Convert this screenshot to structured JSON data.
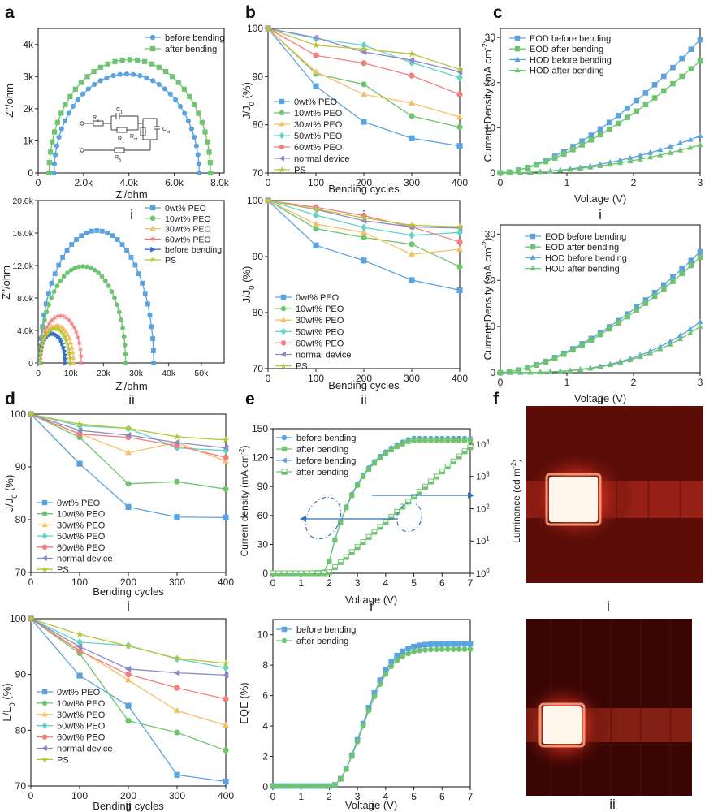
{
  "figure": {
    "panel_letters": [
      "a",
      "b",
      "c",
      "d",
      "e",
      "f"
    ],
    "sub_labels": {
      "i": "i",
      "ii": "ii"
    }
  },
  "chart_data": [
    {
      "id": "a-i",
      "type": "scatter",
      "title": "",
      "xlabel": "Z'/ohm",
      "ylabel": "Z''/ohm",
      "xlim": [
        0,
        8200
      ],
      "ylim": [
        0,
        4500
      ],
      "xticks": [
        0,
        2000,
        4000,
        6000,
        8000
      ],
      "xticklabels": [
        "0",
        "2.0k",
        "4.0k",
        "6.0k",
        "8.0k"
      ],
      "yticks": [
        0,
        1000,
        2000,
        3000,
        4000
      ],
      "yticklabels": [
        "0",
        "1k",
        "2k",
        "3k",
        "4k"
      ],
      "legend": "top-right",
      "inset": {
        "labels": [
          "R2",
          "C1",
          "R1",
          "Rct",
          "Cct",
          "R3"
        ]
      },
      "series": [
        {
          "name": "before bending",
          "color": "#5ba3e0",
          "marker": "circle",
          "semicircle": {
            "x0": 700,
            "x1": 7100,
            "ypeak": 3080
          }
        },
        {
          "name": "after bending",
          "color": "#6fc46f",
          "marker": "square",
          "semicircle": {
            "x0": 480,
            "x1": 7600,
            "ypeak": 3530
          }
        }
      ]
    },
    {
      "id": "a-ii",
      "type": "scatter",
      "title": "",
      "xlabel": "Z'/ohm",
      "ylabel": "Z''/ohm",
      "xlim": [
        0,
        57000
      ],
      "ylim": [
        0,
        20000
      ],
      "xticks": [
        0,
        10000,
        20000,
        30000,
        40000,
        50000
      ],
      "xticklabels": [
        "0",
        "10k",
        "20k",
        "30k",
        "40k",
        "50k"
      ],
      "yticks": [
        0,
        4000,
        8000,
        12000,
        16000,
        20000
      ],
      "yticklabels": [
        "0",
        "4.0k",
        "8.0k",
        "12.0k",
        "16.0k",
        "20.0k"
      ],
      "legend": "top-right",
      "series": [
        {
          "name": "0wt% PEO",
          "color": "#5ba3e0",
          "marker": "square",
          "semicircle": {
            "x0": 600,
            "x1": 35400,
            "ypeak": 16300
          }
        },
        {
          "name": "10wt% PEO",
          "color": "#6fc46f",
          "marker": "circle",
          "semicircle": {
            "x0": 600,
            "x1": 26800,
            "ypeak": 11900
          }
        },
        {
          "name": "30wt% PEO",
          "color": "#f5c065",
          "marker": "triangle",
          "semicircle": {
            "x0": 500,
            "x1": 10800,
            "ypeak": 4600
          }
        },
        {
          "name": "60wt% PEO",
          "color": "#f07f7f",
          "marker": "spike",
          "semicircle": {
            "x0": 500,
            "x1": 13200,
            "ypeak": 5800
          }
        },
        {
          "name": "before bending",
          "color": "#3572c2",
          "marker": "triangle-right",
          "semicircle": {
            "x0": 400,
            "x1": 8400,
            "ypeak": 3600
          }
        },
        {
          "name": "PS",
          "color": "#b7c63a",
          "marker": "star",
          "semicircle": {
            "x0": 450,
            "x1": 9800,
            "ypeak": 4200
          }
        }
      ]
    },
    {
      "id": "b-i",
      "type": "line",
      "title": "",
      "xlabel": "Bending cycles",
      "ylabel": "J/J0 (%)",
      "x": [
        0,
        100,
        200,
        300,
        400
      ],
      "xlim": [
        0,
        400
      ],
      "ylim": [
        70,
        100
      ],
      "xticks": [
        0,
        100,
        200,
        300,
        400
      ],
      "yticks": [
        70,
        80,
        90,
        100
      ],
      "legend": "bottom-left",
      "series": [
        {
          "name": "0wt% PEO",
          "color": "#5ba3e0",
          "marker": "square",
          "values": [
            100,
            88,
            80.6,
            77.2,
            75.6
          ]
        },
        {
          "name": "10wt% PEO",
          "color": "#6fc46f",
          "marker": "circle",
          "values": [
            100,
            90.6,
            88.4,
            81.8,
            79.5
          ]
        },
        {
          "name": "30wt% PEO",
          "color": "#f5c065",
          "marker": "triangle",
          "values": [
            100,
            91,
            86.3,
            84.5,
            81.6
          ]
        },
        {
          "name": "50wt% PEO",
          "color": "#62d3c4",
          "marker": "diamond",
          "values": [
            100,
            97.9,
            96.5,
            92.9,
            89.8
          ]
        },
        {
          "name": "60wt% PEO",
          "color": "#f07f7f",
          "marker": "circle",
          "values": [
            100,
            94.4,
            92.8,
            90.2,
            86.3
          ]
        },
        {
          "name": "normal device",
          "color": "#8a8ac8",
          "marker": "triangle-left",
          "values": [
            100,
            98.1,
            95.1,
            93.4,
            91
          ]
        },
        {
          "name": "PS",
          "color": "#b7c63a",
          "marker": "star",
          "values": [
            100,
            96.5,
            95.7,
            94.7,
            91.5
          ]
        }
      ]
    },
    {
      "id": "b-ii",
      "type": "line",
      "title": "",
      "xlabel": "Bending cycles",
      "ylabel": "J/J0 (%)",
      "x": [
        0,
        100,
        200,
        300,
        400
      ],
      "xlim": [
        0,
        400
      ],
      "ylim": [
        70,
        100
      ],
      "xticks": [
        0,
        100,
        200,
        300,
        400
      ],
      "yticks": [
        70,
        80,
        90,
        100
      ],
      "legend": "bottom-left",
      "series": [
        {
          "name": "0wt% PEO",
          "color": "#5ba3e0",
          "marker": "square",
          "values": [
            100,
            92,
            89.3,
            85.8,
            84
          ]
        },
        {
          "name": "10wt% PEO",
          "color": "#6fc46f",
          "marker": "circle",
          "values": [
            100,
            95,
            93.4,
            92.2,
            88.2
          ]
        },
        {
          "name": "30wt% PEO",
          "color": "#f5c065",
          "marker": "triangle",
          "values": [
            100,
            95.8,
            94.3,
            90.4,
            91.3
          ]
        },
        {
          "name": "50wt% PEO",
          "color": "#62d3c4",
          "marker": "diamond",
          "values": [
            100,
            97.4,
            95.2,
            93.8,
            94.3
          ]
        },
        {
          "name": "60wt% PEO",
          "color": "#f07f7f",
          "marker": "circle",
          "values": [
            100,
            98.8,
            97.3,
            95.3,
            92.6
          ]
        },
        {
          "name": "normal device",
          "color": "#8a8ac8",
          "marker": "triangle-left",
          "values": [
            100,
            98.4,
            96.4,
            95.3,
            95.1
          ]
        },
        {
          "name": "PS",
          "color": "#b7c63a",
          "marker": "star",
          "values": [
            100,
            98.5,
            96.9,
            95.6,
            95.3
          ]
        }
      ]
    },
    {
      "id": "c-i",
      "type": "line",
      "title": "",
      "xlabel": "Voltage (V)",
      "ylabel": "Current Density (mA cm-2)",
      "xlim": [
        0,
        3
      ],
      "ylim": [
        0,
        32
      ],
      "xticks": [
        0,
        1,
        2,
        3
      ],
      "yticks": [
        0,
        10,
        20,
        30
      ],
      "legend": "top-left",
      "series": [
        {
          "name": "EOD before bending",
          "color": "#5ba3e0",
          "marker": "square",
          "model": {
            "a": 29.5,
            "p": 1.6
          }
        },
        {
          "name": "EOD after bending",
          "color": "#6fc46f",
          "marker": "square",
          "model": {
            "a": 24.8,
            "p": 1.55
          }
        },
        {
          "name": "HOD before bending",
          "color": "#5ba3e0",
          "marker": "triangle",
          "model": {
            "a": 8.2,
            "p": 2.1
          }
        },
        {
          "name": "HOD after bending",
          "color": "#6fc46f",
          "marker": "triangle",
          "model": {
            "a": 6.2,
            "p": 2.0
          }
        }
      ]
    },
    {
      "id": "c-ii",
      "type": "line",
      "title": "",
      "xlabel": "Voltage (V)",
      "ylabel": "Current Density (mA cm-2)",
      "xlim": [
        0,
        3
      ],
      "ylim": [
        0,
        32
      ],
      "xticks": [
        0,
        1,
        2,
        3
      ],
      "yticks": [
        0,
        10,
        20,
        30
      ],
      "legend": "top-right",
      "series": [
        {
          "name": "EOD before bending",
          "color": "#5ba3e0",
          "marker": "square",
          "model": {
            "a": 26.2,
            "p": 1.6
          }
        },
        {
          "name": "EOD after bending",
          "color": "#6fc46f",
          "marker": "square",
          "model": {
            "a": 25.0,
            "p": 1.6
          }
        },
        {
          "name": "HOD before bending",
          "color": "#5ba3e0",
          "marker": "triangle",
          "model": {
            "a": 11.0,
            "p": 3.0
          }
        },
        {
          "name": "HOD after bending",
          "color": "#6fc46f",
          "marker": "triangle",
          "model": {
            "a": 10.0,
            "p": 3.0
          }
        }
      ]
    },
    {
      "id": "d-i",
      "type": "line",
      "title": "",
      "xlabel": "Bending cycles",
      "ylabel": "J/J0 (%)",
      "x": [
        0,
        100,
        200,
        300,
        400
      ],
      "xlim": [
        0,
        400
      ],
      "ylim": [
        70,
        100
      ],
      "xticks": [
        0,
        100,
        200,
        300,
        400
      ],
      "yticks": [
        70,
        80,
        90,
        100
      ],
      "legend": "bottom-left",
      "series": [
        {
          "name": "0wt% PEO",
          "color": "#5ba3e0",
          "marker": "square",
          "values": [
            100,
            90.6,
            82.4,
            80.5,
            80.4
          ]
        },
        {
          "name": "10wt% PEO",
          "color": "#6fc46f",
          "marker": "circle",
          "values": [
            100,
            95.6,
            86.8,
            87.2,
            85.8
          ]
        },
        {
          "name": "30wt% PEO",
          "color": "#f5c065",
          "marker": "triangle",
          "values": [
            100,
            96.3,
            92.7,
            94.6,
            91.1
          ]
        },
        {
          "name": "50wt% PEO",
          "color": "#62d3c4",
          "marker": "diamond",
          "values": [
            100,
            97.8,
            97.3,
            93.6,
            93.1
          ]
        },
        {
          "name": "60wt% PEO",
          "color": "#f07f7f",
          "marker": "circle",
          "values": [
            100,
            96.2,
            95.6,
            94,
            91.8
          ]
        },
        {
          "name": "normal device",
          "color": "#8a8ac8",
          "marker": "triangle-left",
          "values": [
            100,
            96.9,
            96,
            94.6,
            93.6
          ]
        },
        {
          "name": "PS",
          "color": "#b7c63a",
          "marker": "star",
          "values": [
            100,
            98.1,
            97.3,
            95.7,
            95.1
          ]
        }
      ]
    },
    {
      "id": "d-ii",
      "type": "line",
      "title": "",
      "xlabel": "Bending cycles",
      "ylabel": "L/L0 (%)",
      "x": [
        0,
        100,
        200,
        300,
        400
      ],
      "xlim": [
        0,
        400
      ],
      "ylim": [
        70,
        100
      ],
      "xticks": [
        0,
        100,
        200,
        300,
        400
      ],
      "yticks": [
        70,
        80,
        90,
        100
      ],
      "legend": "bottom-left",
      "series": [
        {
          "name": "0wt% PEO",
          "color": "#5ba3e0",
          "marker": "square",
          "values": [
            100,
            89.8,
            84.4,
            72,
            70.8
          ]
        },
        {
          "name": "10wt% PEO",
          "color": "#6fc46f",
          "marker": "circle",
          "values": [
            100,
            93.8,
            81.7,
            79.6,
            76.4
          ]
        },
        {
          "name": "30wt% PEO",
          "color": "#f5c065",
          "marker": "triangle",
          "values": [
            100,
            94.4,
            89,
            83.5,
            80.9
          ]
        },
        {
          "name": "50wt% PEO",
          "color": "#62d3c4",
          "marker": "diamond",
          "values": [
            100,
            95.8,
            95.2,
            92.8,
            91.2
          ]
        },
        {
          "name": "60wt% PEO",
          "color": "#f07f7f",
          "marker": "circle",
          "values": [
            100,
            94.2,
            90,
            87.6,
            85.6
          ]
        },
        {
          "name": "normal device",
          "color": "#8a8ac8",
          "marker": "triangle-left",
          "values": [
            100,
            95,
            91,
            90.3,
            89.9
          ]
        },
        {
          "name": "PS",
          "color": "#b7c63a",
          "marker": "star",
          "values": [
            100,
            97.2,
            95.1,
            92.9,
            92
          ]
        }
      ]
    },
    {
      "id": "e-i",
      "type": "line",
      "title": "",
      "xlabel": "Voltage (V)",
      "ylabel": "Current density (mA cm-2)",
      "ylabel_right": "Luminance (cd m-2)",
      "xlim": [
        0,
        7
      ],
      "ylim": [
        0,
        150
      ],
      "ylim_right": [
        1,
        30000
      ],
      "xticks": [
        0,
        1,
        2,
        3,
        4,
        5,
        6,
        7
      ],
      "yticks": [
        0,
        30,
        60,
        90,
        120,
        150
      ],
      "yticks_right": [
        1,
        10,
        100,
        1000,
        10000
      ],
      "yticklabels_right": [
        "10^0",
        "10^1",
        "10^2",
        "10^3",
        "10^4"
      ],
      "legend": "top-left",
      "series": [
        {
          "name": "before bending",
          "axis": "left",
          "color": "#5ba3e0",
          "marker": "circle",
          "model": {
            "von": 1.9,
            "vmax": 7,
            "jmax": 140
          }
        },
        {
          "name": "after bending",
          "axis": "left",
          "color": "#6fc46f",
          "marker": "square",
          "model": {
            "von": 1.9,
            "vmax": 7,
            "jmax": 138
          }
        },
        {
          "name": "before bending",
          "axis": "right",
          "color": "#5ba3e0",
          "marker": "triangle-left",
          "model": {
            "von": 1.9,
            "lmax": 9000
          }
        },
        {
          "name": "after bending",
          "axis": "right",
          "color": "#6fc46f",
          "marker": "half-square",
          "model": {
            "von": 1.9,
            "lmax": 8000
          }
        }
      ]
    },
    {
      "id": "e-ii",
      "type": "line",
      "title": "",
      "xlabel": "Voltage (V)",
      "ylabel": "EQE (%)",
      "xlim": [
        0,
        7
      ],
      "ylim": [
        0,
        11
      ],
      "xticks": [
        0,
        1,
        2,
        3,
        4,
        5,
        6,
        7
      ],
      "yticks": [
        0,
        2,
        4,
        6,
        8,
        10
      ],
      "legend": "top-left",
      "series": [
        {
          "name": "before bending",
          "color": "#5ba3e0",
          "marker": "square",
          "model": {
            "von": 2.0,
            "emax": 9.4
          }
        },
        {
          "name": "after bending",
          "color": "#6fc46f",
          "marker": "circle",
          "model": {
            "von": 2.0,
            "emax": 9.05
          }
        }
      ]
    }
  ]
}
